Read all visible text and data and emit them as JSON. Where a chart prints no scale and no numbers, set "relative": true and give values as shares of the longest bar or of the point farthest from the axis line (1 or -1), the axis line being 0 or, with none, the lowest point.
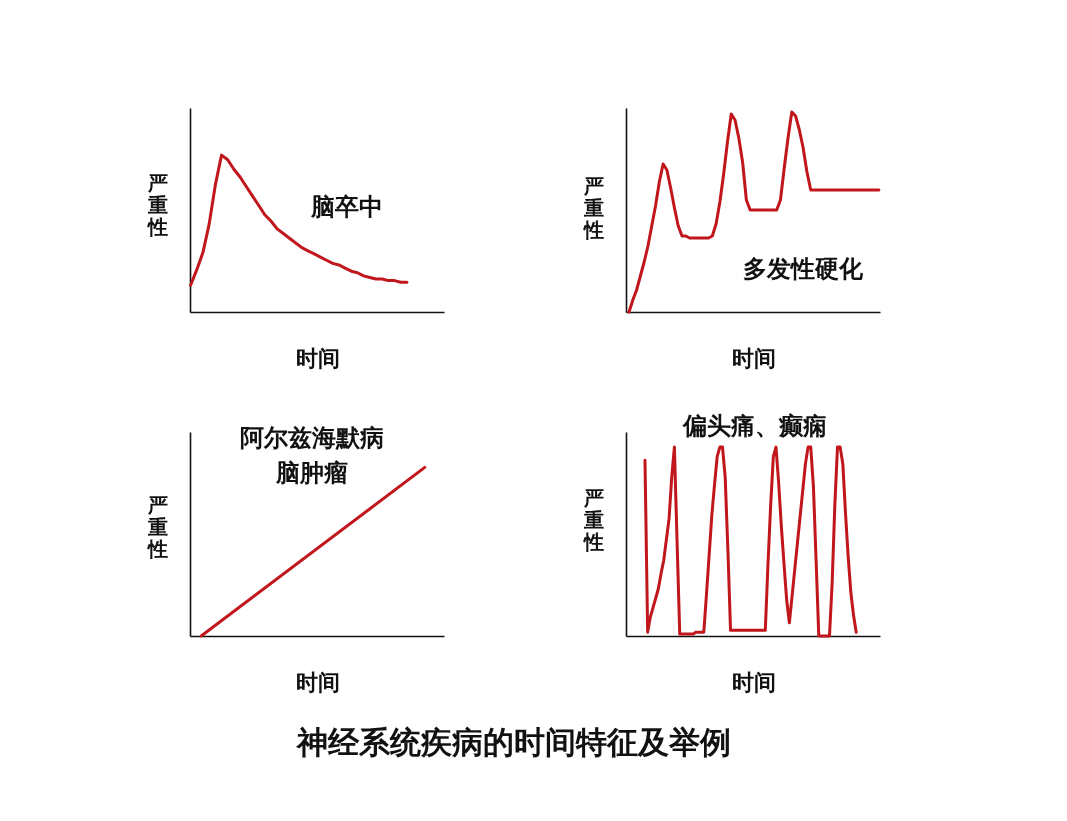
{
  "chart_data": [
    {
      "type": "line",
      "xlabel": "时间",
      "ylabel": "严重性",
      "relative": true,
      "tick_labels": false,
      "annotations": [
        "脑卒中"
      ],
      "categories": [
        null,
        null,
        null,
        null,
        null,
        null,
        null,
        null,
        null,
        null,
        null,
        null,
        null,
        null,
        null,
        null,
        null,
        null,
        null,
        null,
        null,
        null,
        null,
        null,
        null,
        null,
        null,
        null,
        null,
        null,
        null,
        null,
        null,
        null,
        null,
        null
      ],
      "series": [
        {
          "color": "#c0161c",
          "values": [
            0.17,
            0.27,
            0.38,
            0.56,
            0.81,
            1.0,
            0.97,
            0.91,
            0.86,
            0.8,
            0.74,
            0.68,
            0.62,
            0.58,
            0.53,
            0.5,
            0.47,
            0.44,
            0.41,
            0.39,
            0.37,
            0.35,
            0.33,
            0.31,
            0.3,
            0.28,
            0.26,
            0.25,
            0.23,
            0.22,
            0.21,
            0.21,
            0.2,
            0.2,
            0.19,
            0.19
          ]
        }
      ]
    },
    {
      "type": "line",
      "xlabel": "时间",
      "ylabel": "严重性",
      "relative": true,
      "tick_labels": false,
      "annotations": [
        "多发性硬化"
      ],
      "categories": [
        null,
        null,
        null,
        null,
        null,
        null,
        null,
        null,
        null,
        null,
        null,
        null,
        null,
        null,
        null,
        null,
        null,
        null,
        null,
        null,
        null,
        null,
        null,
        null,
        null,
        null,
        null,
        null,
        null,
        null,
        null,
        null,
        null,
        null,
        null,
        null,
        null,
        null,
        null,
        null,
        null,
        null,
        null,
        null,
        null,
        null,
        null,
        null,
        null,
        null,
        null,
        null,
        null,
        null,
        null,
        null,
        null,
        null,
        null,
        null,
        null,
        null,
        null,
        null,
        null,
        null,
        null
      ],
      "series": [
        {
          "color": "#c0161c",
          "values": [
            0,
            0.06,
            0.11,
            0.18,
            0.25,
            0.33,
            0.43,
            0.53,
            0.65,
            0.74,
            0.71,
            0.62,
            0.52,
            0.43,
            0.38,
            0.38,
            0.37,
            0.37,
            0.37,
            0.37,
            0.37,
            0.37,
            0.38,
            0.44,
            0.55,
            0.69,
            0.85,
            0.99,
            0.96,
            0.87,
            0.75,
            0.56,
            0.51,
            0.51,
            0.51,
            0.51,
            0.51,
            0.51,
            0.51,
            0.51,
            0.56,
            0.72,
            0.87,
            1.0,
            0.98,
            0.91,
            0.82,
            0.7,
            0.61,
            0.61,
            0.61,
            0.61,
            0.61,
            0.61,
            0.61,
            0.61,
            0.61,
            0.61,
            0.61,
            0.61,
            0.61,
            0.61,
            0.61,
            0.61,
            0.61,
            0.61,
            0.61
          ]
        }
      ]
    },
    {
      "type": "line",
      "xlabel": "时间",
      "ylabel": "严重性",
      "relative": true,
      "tick_labels": false,
      "annotations": [
        "阿尔兹海默病",
        "脑肿瘤"
      ],
      "categories": [
        null,
        null
      ],
      "series": [
        {
          "color": "#c0161c",
          "values": [
            0,
            1
          ]
        }
      ]
    },
    {
      "type": "line",
      "xlabel": "时间",
      "ylabel": "严重性",
      "relative": true,
      "tick_labels": false,
      "annotations": [
        "偏头痛、癫痫"
      ],
      "categories": [
        null,
        null,
        null,
        null,
        null,
        null,
        null,
        null,
        null,
        null,
        null,
        null,
        null,
        null,
        null,
        null,
        null,
        null,
        null,
        null,
        null,
        null,
        null,
        null,
        null,
        null,
        null,
        null,
        null,
        null,
        null,
        null,
        null,
        null,
        null,
        null,
        null,
        null,
        null,
        null,
        null,
        null,
        null,
        null,
        null,
        null,
        null,
        null,
        null,
        null,
        null,
        null,
        null,
        null,
        null,
        null,
        null,
        null,
        null,
        null,
        null,
        null,
        null,
        null,
        null,
        null,
        null,
        null,
        null,
        null,
        null,
        null,
        null,
        null,
        null,
        null,
        null,
        null,
        null,
        null
      ],
      "series": [
        {
          "color": "#c0161c",
          "values": [
            0.93,
            0.02,
            0.1,
            0.15,
            0.2,
            0.25,
            0.33,
            0.4,
            0.51,
            0.62,
            0.84,
            1.0,
            0.5,
            0.01,
            0.01,
            0.01,
            0.01,
            0.01,
            0.01,
            0.02,
            0.02,
            0.02,
            0.02,
            0.22,
            0.43,
            0.64,
            0.8,
            0.95,
            1.0,
            1.0,
            0.84,
            0.46,
            0.03,
            0.03,
            0.03,
            0.03,
            0.03,
            0.03,
            0.03,
            0.03,
            0.03,
            0.03,
            0.03,
            0.03,
            0.03,
            0.03,
            0.38,
            0.69,
            0.95,
            1.0,
            0.81,
            0.58,
            0.38,
            0.19,
            0.07,
            0.21,
            0.35,
            0.49,
            0.63,
            0.77,
            0.91,
            1.0,
            1.0,
            0.79,
            0.4,
            0,
            0,
            0,
            0,
            0,
            0.28,
            0.69,
            1.0,
            1.0,
            0.91,
            0.65,
            0.42,
            0.23,
            0.11,
            0.02
          ]
        }
      ]
    },
    {
      "type": "other",
      "title": "神经系统疾病的时间特征及举例"
    }
  ]
}
